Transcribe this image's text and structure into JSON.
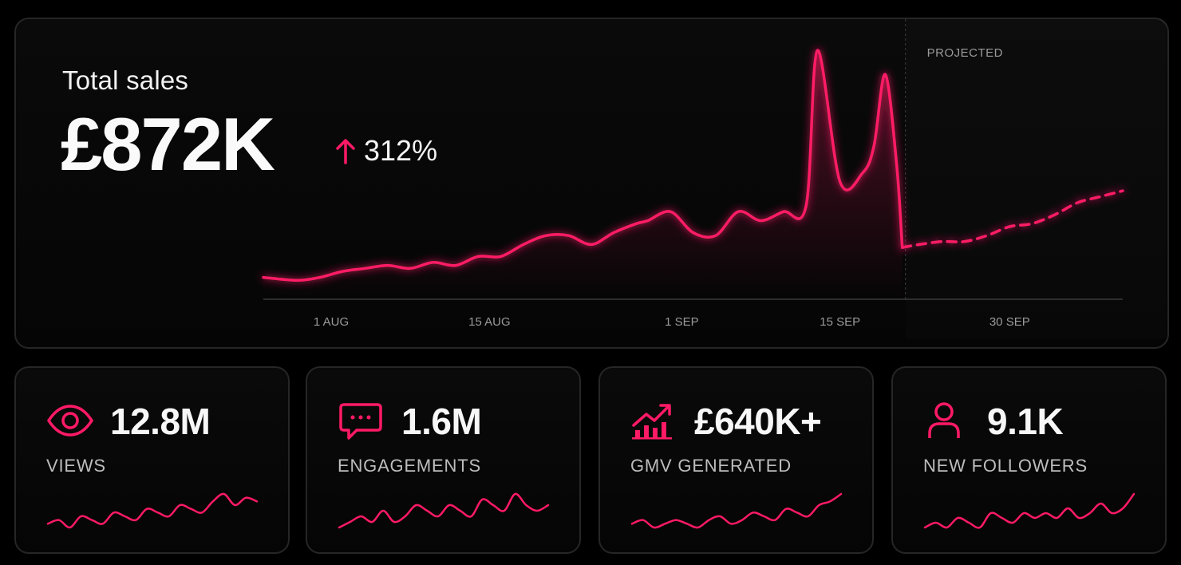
{
  "colors": {
    "accent": "#ff1a66",
    "background": "#000000",
    "card_border": "#262626",
    "muted_text": "#9a9a9a"
  },
  "total_sales": {
    "title": "Total sales",
    "value": "£872K",
    "change": "312%",
    "change_icon": "arrow-up-icon"
  },
  "chart_data": {
    "type": "line",
    "title": "",
    "xlabel": "",
    "ylabel": "",
    "x_tick_labels": [
      "1 AUG",
      "15 AUG",
      "1 SEP",
      "15 SEP",
      "30 SEP"
    ],
    "projected_label": "PROJECTED",
    "grid": false,
    "y_axis_visible": false,
    "note_values": "relative sales index read from line height",
    "actual": {
      "days": [
        -5,
        -2,
        0,
        2,
        4,
        6,
        8,
        10,
        12,
        14,
        16,
        18,
        20,
        22,
        24,
        26,
        28,
        29,
        31,
        33,
        35,
        37,
        39,
        41,
        43,
        44,
        46,
        48,
        49,
        50,
        51,
        51.5
      ],
      "values": [
        6,
        5,
        6,
        8,
        9,
        10,
        9,
        11,
        10,
        13,
        13,
        17,
        20,
        20,
        17,
        21,
        24,
        25,
        28,
        21,
        20,
        28,
        25,
        28,
        30,
        82,
        38,
        41,
        50,
        74,
        44,
        16
      ]
    },
    "projected": {
      "days": [
        51.5,
        53,
        55,
        57,
        59,
        61,
        63,
        65,
        67,
        69,
        71
      ],
      "values": [
        16,
        17,
        18,
        18,
        20,
        23,
        24,
        27,
        31,
        33,
        35
      ]
    }
  },
  "kpis": [
    {
      "value": "12.8M",
      "label": "VIEWS",
      "icon": "eye-icon",
      "spark": [
        3,
        4,
        2,
        5,
        4,
        3,
        6,
        5,
        4,
        7,
        6,
        5,
        8,
        7,
        6,
        9,
        11,
        8,
        10,
        9
      ]
    },
    {
      "value": "1.6M",
      "label": "ENGAGEMENTS",
      "icon": "chat-bubble-icon",
      "spark": [
        4,
        5,
        6,
        5,
        7,
        5,
        6,
        8,
        7,
        6,
        8,
        7,
        6,
        9,
        8,
        7,
        10,
        8,
        7,
        8
      ]
    },
    {
      "value": "£640K+",
      "label": "GMV GENERATED",
      "icon": "bar-chart-trend-icon",
      "spark": [
        5,
        6,
        4,
        5,
        6,
        5,
        4,
        6,
        7,
        5,
        6,
        8,
        7,
        6,
        9,
        8,
        7,
        10,
        11,
        13
      ]
    },
    {
      "value": "9.1K",
      "label": "NEW FOLLOWERS",
      "icon": "user-icon",
      "spark": [
        3,
        4,
        3,
        5,
        4,
        3,
        6,
        5,
        4,
        6,
        5,
        6,
        5,
        7,
        5,
        6,
        8,
        6,
        7,
        10
      ]
    }
  ]
}
